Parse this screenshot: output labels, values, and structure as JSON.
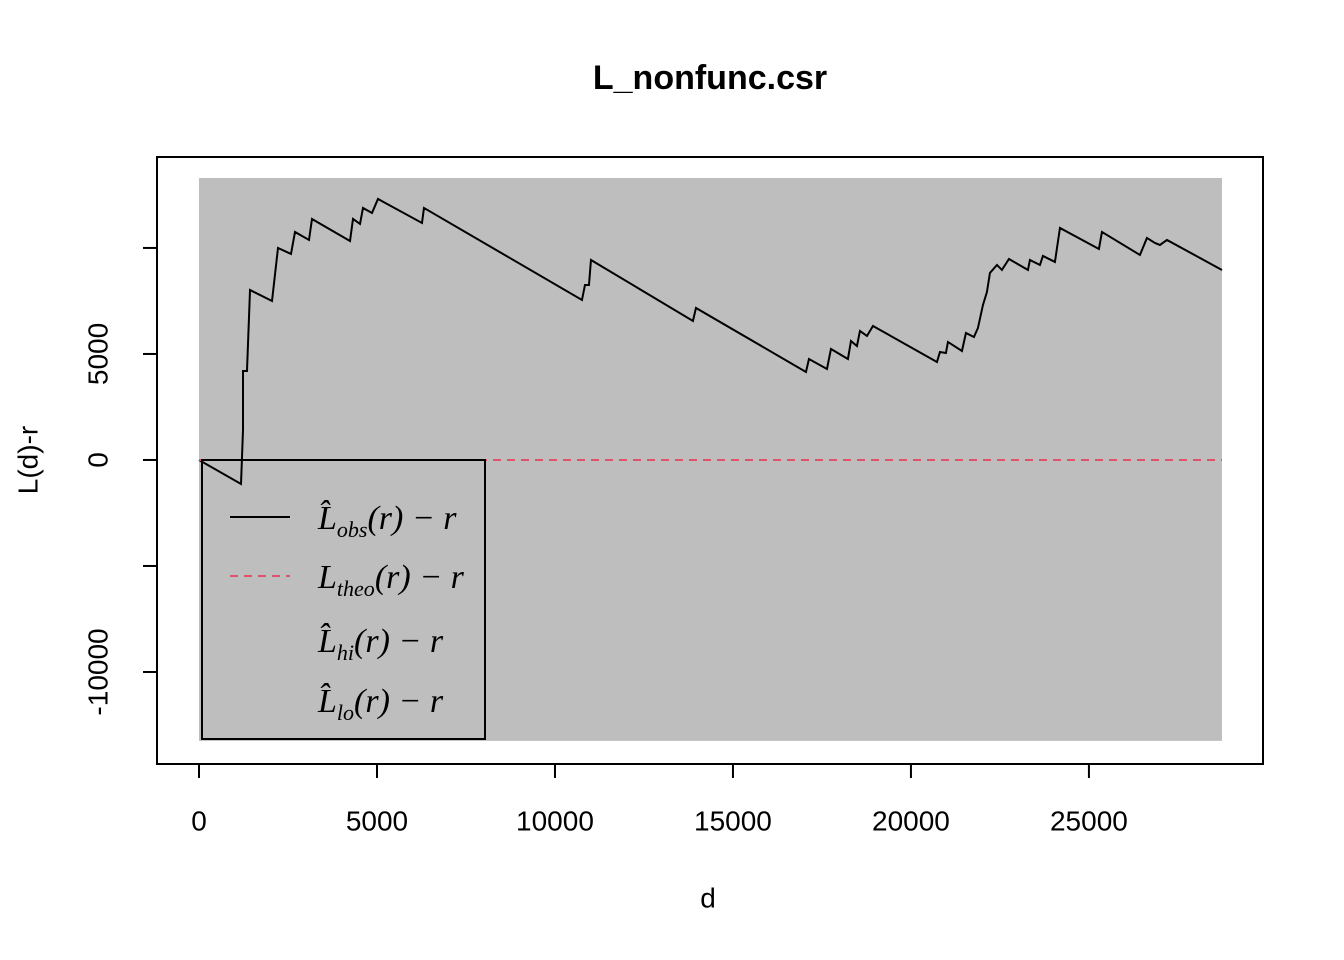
{
  "chart_data": {
    "type": "line",
    "title": "L_nonfunc.csr",
    "x_label": "d",
    "y_label": "L(d)-r",
    "xlim": [
      -1180,
      29890
    ],
    "ylim": [
      -14340,
      14290
    ],
    "xticks": [
      0,
      5000,
      10000,
      15000,
      20000,
      25000
    ],
    "yticks": [
      {
        "value": -10000,
        "label": "-10000"
      },
      {
        "value": -5000,
        "label": null
      },
      0,
      5000,
      {
        "value": 10000,
        "label": null
      }
    ],
    "series": [
      {
        "name": "L̂",
        "subscript": "obs",
        "suffix": "(r) − r",
        "color": "#000000",
        "style": "solid",
        "x": [
          0,
          1180,
          1236,
          1236,
          1348,
          1433,
          2051,
          2219,
          2584,
          2697,
          3090,
          3174,
          4242,
          4326,
          4523,
          4607,
          4860,
          5028,
          6264,
          6320,
          10758,
          10843,
          10955,
          11011,
          13876,
          13961,
          17051,
          17135,
          17641,
          17753,
          18230,
          18315,
          18483,
          18568,
          18764,
          18933,
          20731,
          20815,
          20983,
          21039,
          21433,
          21545,
          21770,
          21882,
          22023,
          22135,
          22219,
          22416,
          22556,
          22753,
          23287,
          23343,
          23624,
          23708,
          24045,
          24186,
          25281,
          25366,
          26433,
          26630,
          26855,
          26995,
          27192,
          28737
        ],
        "values": [
          0,
          -1132,
          1415,
          4198,
          4198,
          8019,
          7500,
          10000,
          9717,
          10755,
          10377,
          11368,
          10330,
          11368,
          11132,
          11887,
          11651,
          12311,
          11179,
          11887,
          7547,
          8255,
          8255,
          9434,
          6557,
          7170,
          4151,
          4764,
          4292,
          5236,
          4764,
          5613,
          5377,
          6085,
          5849,
          6321,
          4623,
          5094,
          5047,
          5566,
          5142,
          5991,
          5802,
          6226,
          7311,
          7925,
          8821,
          9198,
          8962,
          9481,
          8962,
          9434,
          9198,
          9623,
          9340,
          10943,
          9953,
          10755,
          9670,
          10472,
          10236,
          10142,
          10377,
          8962
        ]
      },
      {
        "name": "L",
        "subscript": "theo",
        "suffix": "(r) − r",
        "color": "#DF536B",
        "style": "dashed",
        "x": [
          0,
          28737
        ],
        "values": [
          0,
          0
        ]
      },
      {
        "name": "L̂",
        "subscript": "hi",
        "suffix": "(r) − r",
        "color": "#BEBEBE",
        "style": "band-upper",
        "x": [
          0,
          28737
        ],
        "values": [
          13300,
          13300
        ]
      },
      {
        "name": "L̂",
        "subscript": "lo",
        "suffix": "(r) − r",
        "color": "#BEBEBE",
        "style": "band-lower",
        "x": [
          0,
          28737
        ],
        "values": [
          -13250,
          -13250
        ]
      }
    ],
    "legend": "bottom-left"
  }
}
